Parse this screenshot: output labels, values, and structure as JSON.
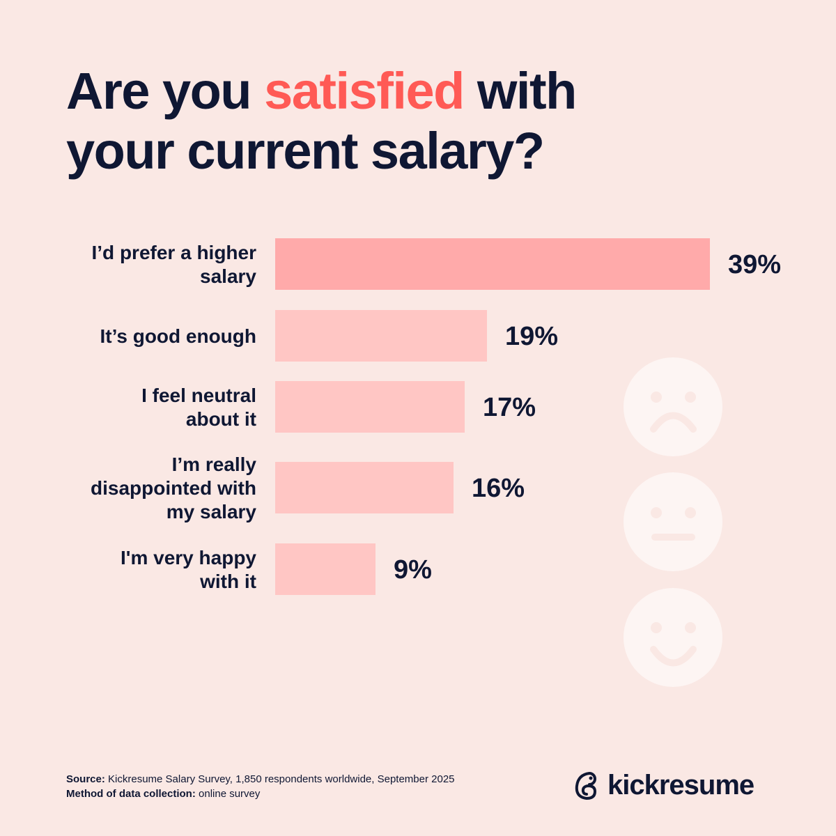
{
  "title": {
    "part1": "Are you ",
    "highlight": "satisfied",
    "part2": " with",
    "line2": "your current salary?"
  },
  "colors": {
    "background": "#FAE8E4",
    "text": "#0F1733",
    "accent": "#FF5A55",
    "bar_top": "#FFAAAA",
    "bar": "#FFC6C4",
    "face": "#FDF5F3"
  },
  "chart_data": {
    "type": "bar",
    "orientation": "horizontal",
    "title": "Are you satisfied with your current salary?",
    "categories": [
      [
        "I’d prefer a higher",
        "salary"
      ],
      [
        "It’s good enough"
      ],
      [
        "I feel neutral",
        "about it"
      ],
      [
        "I’m really",
        "disappointed with",
        "my salary"
      ],
      [
        "I'm very happy",
        "with it"
      ]
    ],
    "values": [
      39,
      19,
      17,
      16,
      9
    ],
    "value_labels": [
      "39%",
      "19%",
      "17%",
      "16%",
      "9%"
    ],
    "xlim": [
      0,
      39
    ],
    "grid": false
  },
  "icons": [
    "sad-face-icon",
    "neutral-face-icon",
    "happy-face-icon"
  ],
  "footer": {
    "source_label": "Source:",
    "source_text": " Kickresume Salary Survey, 1,850 respondents worldwide, September 2025",
    "method_label": "Method of data collection:",
    "method_text": " online survey"
  },
  "brand": "kickresume"
}
